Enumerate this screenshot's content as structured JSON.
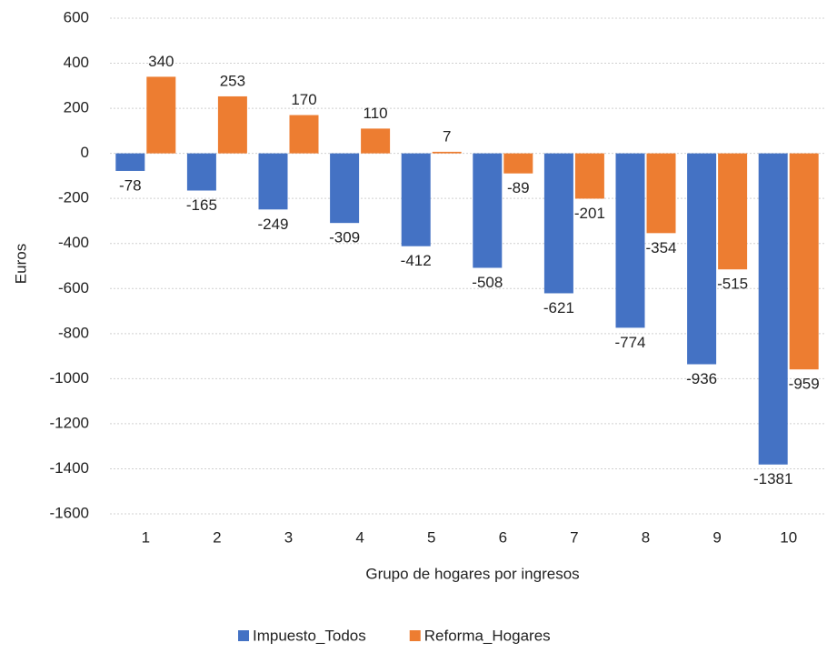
{
  "chart_data": {
    "type": "bar",
    "x_label": "Grupo de hogares por ingresos",
    "y_label": "Euros",
    "categories": [
      "1",
      "2",
      "3",
      "4",
      "5",
      "6",
      "7",
      "8",
      "9",
      "10"
    ],
    "series": [
      {
        "name": "Impuesto_Todos",
        "color": "#4472c4",
        "values": [
          -78,
          -165,
          -249,
          -309,
          -412,
          -508,
          -621,
          -774,
          -936,
          -1381
        ]
      },
      {
        "name": "Reforma_Hogares",
        "color": "#ed7d31",
        "values": [
          340,
          253,
          170,
          110,
          7,
          -89,
          -201,
          -354,
          -515,
          -959
        ]
      }
    ],
    "ylim": [
      -1600,
      600
    ],
    "yticks": [
      -1600,
      -1400,
      -1200,
      -1000,
      -800,
      -600,
      -400,
      -200,
      0,
      200,
      400,
      600
    ],
    "grid": true,
    "legend": "bottom"
  }
}
